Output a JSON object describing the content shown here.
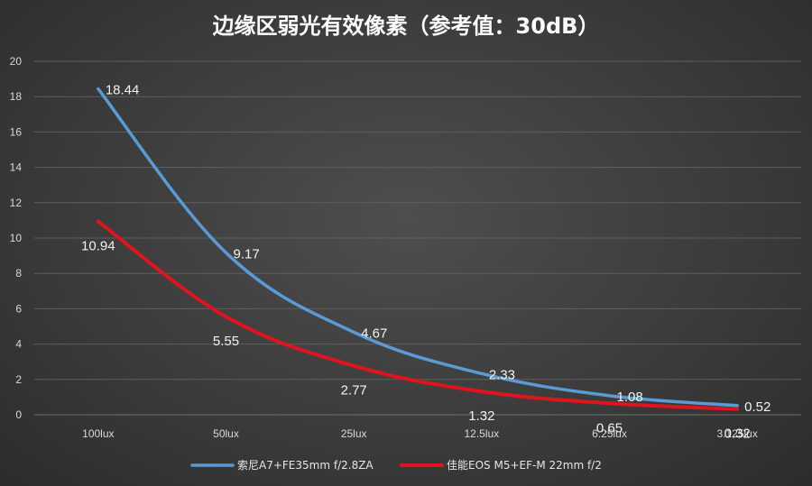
{
  "chart_data": {
    "type": "line",
    "title": "边缘区弱光有效像素（参考值：30dB）",
    "categories": [
      "100lux",
      "50lux",
      "25lux",
      "12.5lux",
      "6.25lux",
      "3.125lux"
    ],
    "ylim": [
      0,
      20
    ],
    "yticks": [
      0,
      2,
      4,
      6,
      8,
      10,
      12,
      14,
      16,
      18,
      20
    ],
    "grid": true,
    "legend_position": "bottom",
    "xlabel": "",
    "ylabel": "",
    "series": [
      {
        "name": "索尼A7+FE35mm f/2.8ZA",
        "color": "#5b9bd5",
        "values": [
          18.44,
          9.17,
          4.67,
          2.33,
          1.08,
          0.52
        ],
        "labels": [
          "18.44",
          "9.17",
          "4.67",
          "2.33",
          "1.08",
          "0.52"
        ]
      },
      {
        "name": "佳能EOS M5+EF-M 22mm f/2",
        "color": "#e0141e",
        "values": [
          10.94,
          5.55,
          2.77,
          1.32,
          0.65,
          0.32
        ],
        "labels": [
          "10.94",
          "5.55",
          "2.77",
          "1.32",
          "0.65",
          "0.32"
        ]
      }
    ]
  }
}
